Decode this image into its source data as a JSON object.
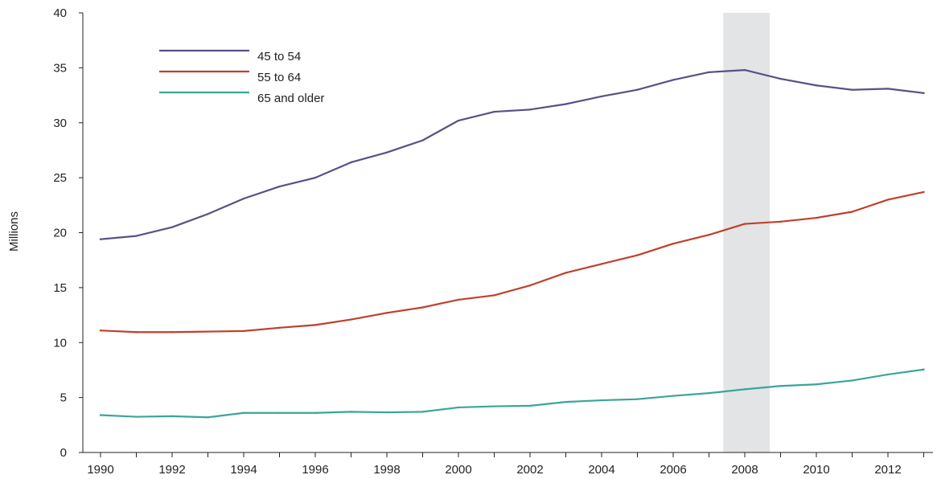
{
  "chart_data": {
    "type": "line",
    "title": "",
    "xlabel": "",
    "ylabel": "Millions",
    "xlim": [
      1990,
      2013
    ],
    "ylim": [
      0,
      40
    ],
    "x_ticks": [
      "1990",
      "1992",
      "1994",
      "1996",
      "1998",
      "2000",
      "2002",
      "2004",
      "2006",
      "2008",
      "2010",
      "2012"
    ],
    "y_ticks": [
      "0",
      "5",
      "10",
      "15",
      "20",
      "25",
      "30",
      "35",
      "40"
    ],
    "grid": false,
    "legend_position": "top-left",
    "shaded_region": {
      "x_start": 2007.4,
      "x_end": 2008.7,
      "color": "#e3e4e6"
    },
    "x": [
      1990,
      1991,
      1992,
      1993,
      1994,
      1995,
      1996,
      1997,
      1998,
      1999,
      2000,
      2001,
      2002,
      2003,
      2004,
      2005,
      2006,
      2007,
      2008,
      2009,
      2010,
      2011,
      2012,
      2013
    ],
    "series": [
      {
        "name": "45 to 54",
        "color": "#5a5087",
        "values": [
          19.4,
          19.7,
          20.5,
          21.7,
          23.1,
          24.2,
          25.0,
          26.4,
          27.3,
          28.4,
          30.2,
          31.0,
          31.2,
          31.7,
          32.4,
          33.0,
          33.9,
          34.6,
          34.8,
          34.0,
          33.4,
          33.0,
          33.1,
          32.7
        ]
      },
      {
        "name": "55 to 64",
        "color": "#c0402a",
        "values": [
          11.1,
          10.95,
          10.95,
          11.0,
          11.05,
          11.35,
          11.6,
          12.1,
          12.7,
          13.2,
          13.9,
          14.3,
          15.2,
          16.35,
          17.15,
          17.95,
          19.0,
          19.8,
          20.8,
          21.0,
          21.35,
          21.9,
          23.0,
          23.7
        ]
      },
      {
        "name": "65 and older",
        "color": "#3aa699",
        "values": [
          3.4,
          3.25,
          3.3,
          3.2,
          3.6,
          3.6,
          3.6,
          3.7,
          3.65,
          3.7,
          4.1,
          4.2,
          4.25,
          4.6,
          4.75,
          4.85,
          5.15,
          5.4,
          5.75,
          6.05,
          6.2,
          6.55,
          7.1,
          7.55
        ]
      }
    ]
  }
}
